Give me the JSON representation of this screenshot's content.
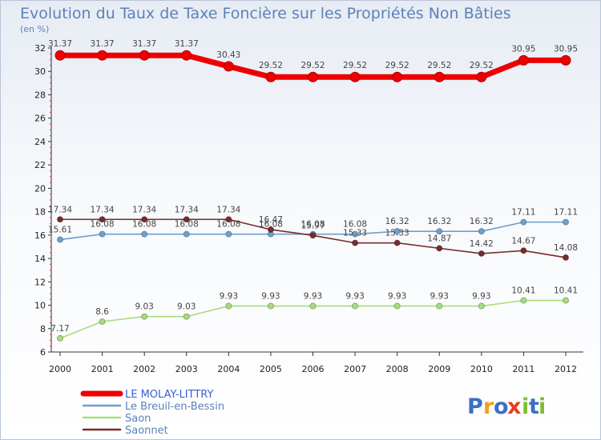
{
  "chart_data": {
    "type": "line",
    "title": "Evolution du Taux de Taxe Foncière sur les Propriétés Non Bâties",
    "ylabel": "(en %)",
    "xlabel": "",
    "ylim": [
      6,
      32
    ],
    "yticks": [
      "6",
      "8",
      "10",
      "12",
      "14",
      "16",
      "18",
      "20",
      "22",
      "24",
      "26",
      "28",
      "30",
      "32"
    ],
    "categories": [
      "2000",
      "2001",
      "2002",
      "2003",
      "2004",
      "2005",
      "2006",
      "2007",
      "2008",
      "2009",
      "2010",
      "2011",
      "2012"
    ],
    "series": [
      {
        "name": "LE MOLAY-LITTRY",
        "color": "#ee0000",
        "values": [
          31.37,
          31.37,
          31.37,
          31.37,
          30.43,
          29.52,
          29.52,
          29.52,
          29.52,
          29.52,
          29.52,
          30.95,
          30.95
        ],
        "labels": [
          "31.37",
          "31.37",
          "31.37",
          "31.37",
          "30.43",
          "29.52",
          "29.52",
          "29.52",
          "29.52",
          "29.52",
          "29.52",
          "30.95",
          "30.95"
        ]
      },
      {
        "name": "Le Breuil-en-Bessin",
        "color": "#6f9fcf",
        "values": [
          15.61,
          16.08,
          16.08,
          16.08,
          16.08,
          16.08,
          16.08,
          16.08,
          16.32,
          16.32,
          16.32,
          17.11,
          17.11
        ],
        "labels": [
          "15.61",
          "16.08",
          "16.08",
          "16.08",
          "16.08",
          "16.08",
          "16.08",
          "16.08",
          "16.32",
          "16.32",
          "16.32",
          "17.11",
          "17.11"
        ]
      },
      {
        "name": "Saon",
        "color": "#a9dc7c",
        "values": [
          7.17,
          8.6,
          9.03,
          9.03,
          9.93,
          9.93,
          9.93,
          9.93,
          9.93,
          9.93,
          9.93,
          10.41,
          10.41
        ],
        "labels": [
          "7.17",
          "8.6",
          "9.03",
          "9.03",
          "9.93",
          "9.93",
          "9.93",
          "9.93",
          "9.93",
          "9.93",
          "9.93",
          "10.41",
          "10.41"
        ]
      },
      {
        "name": "Saonnet",
        "color": "#7a2a2a",
        "values": [
          17.34,
          17.34,
          17.34,
          17.34,
          17.34,
          16.47,
          15.97,
          15.33,
          15.33,
          14.87,
          14.42,
          14.67,
          14.08
        ],
        "labels": [
          "17.34",
          "17.34",
          "17.34",
          "17.34",
          "17.34",
          "16.47",
          "15.97",
          "15.33",
          "15.33",
          "14.87",
          "14.42",
          "14.67",
          "14.08"
        ]
      }
    ],
    "legend": "bottom-left",
    "grid": false
  },
  "logo": {
    "letters": [
      "P",
      "r",
      "o",
      "x",
      "i",
      "t",
      "i"
    ],
    "colors": [
      "#3a6fc4",
      "#f0a020",
      "#3a6fc4",
      "#e04020",
      "#7cc030",
      "#3a6fc4",
      "#7cc030"
    ]
  }
}
